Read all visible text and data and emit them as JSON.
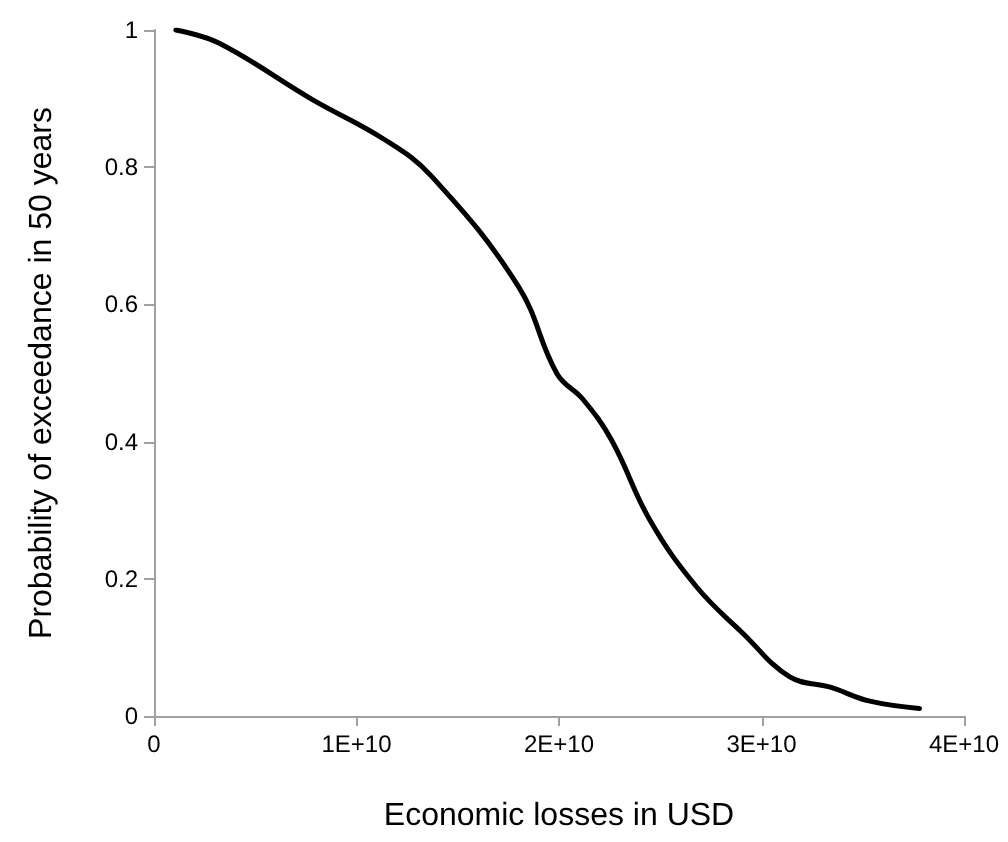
{
  "chart_data": {
    "type": "line",
    "xlabel": "Economic losses in USD",
    "ylabel": "Probability of exceedance in 50 years",
    "x": [
      1080000000,
      3200000000,
      7800000000,
      11400000000,
      13700000000,
      18000000000,
      19900000000,
      21200000000,
      22600000000,
      24500000000,
      26800000000,
      29100000000,
      31400000000,
      33400000000,
      35300000000,
      37800000000
    ],
    "series": [
      {
        "color": "#000000",
        "values": [
          1.0,
          0.981,
          0.899,
          0.84,
          0.787,
          0.626,
          0.499,
          0.461,
          0.402,
          0.285,
          0.188,
          0.12,
          0.057,
          0.042,
          0.022,
          0.011
        ]
      }
    ],
    "xlim": [
      0,
      40000000000
    ],
    "xticks": [
      0,
      {
        "value": 10000000000,
        "label": "1E+10"
      },
      {
        "value": 20000000000,
        "label": "2E+10"
      },
      {
        "value": 30000000000,
        "label": "3E+10"
      },
      {
        "value": 40000000000,
        "label": "4E+10"
      }
    ],
    "ylim": [
      0,
      1
    ],
    "yticks": [
      0,
      0.2,
      0.4,
      0.6,
      0.8,
      1
    ],
    "grid": false,
    "marker": "none",
    "line_style": "solid"
  }
}
